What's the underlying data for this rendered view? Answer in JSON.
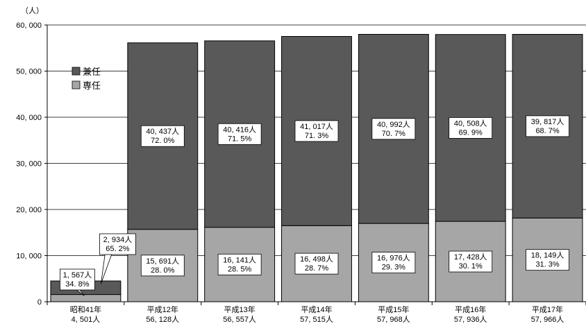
{
  "chart_data": {
    "type": "bar",
    "stacked": true,
    "y_unit": "（人）",
    "ylim": [
      0,
      60000
    ],
    "yticks": [
      0,
      10000,
      20000,
      30000,
      40000,
      50000,
      60000
    ],
    "ytick_labels": [
      "0",
      "10, 000",
      "20, 000",
      "30, 000",
      "40, 000",
      "50, 000",
      "60, 000"
    ],
    "categories": [
      {
        "name": "昭和41年",
        "total": "4, 501人"
      },
      {
        "name": "平成12年",
        "total": "56, 128人"
      },
      {
        "name": "平成13年",
        "total": "56, 557人"
      },
      {
        "name": "平成14年",
        "total": "57, 515人"
      },
      {
        "name": "平成15年",
        "total": "57, 968人"
      },
      {
        "name": "平成16年",
        "total": "57, 936人"
      },
      {
        "name": "平成17年",
        "total": "57, 966人"
      }
    ],
    "series": [
      {
        "name": "専任",
        "color": "#a6a6a6",
        "values": [
          1567,
          15691,
          16141,
          16498,
          16976,
          17428,
          18149
        ],
        "labels": [
          [
            "1, 567人",
            "34. 8%"
          ],
          [
            "15, 691人",
            "28. 0%"
          ],
          [
            "16, 141人",
            "28. 5%"
          ],
          [
            "16, 498人",
            "28. 7%"
          ],
          [
            "16, 976人",
            "29. 3%"
          ],
          [
            "17, 428人",
            "30. 1%"
          ],
          [
            "18, 149人",
            "31. 3%"
          ]
        ]
      },
      {
        "name": "兼任",
        "color": "#595959",
        "values": [
          2934,
          40437,
          40416,
          41017,
          40992,
          40508,
          39817
        ],
        "labels": [
          [
            "2, 934人",
            "65. 2%"
          ],
          [
            "40, 437人",
            "72. 0%"
          ],
          [
            "40, 416人",
            "71. 5%"
          ],
          [
            "41, 017人",
            "71. 3%"
          ],
          [
            "40, 992人",
            "70. 7%"
          ],
          [
            "40, 508人",
            "69. 9%"
          ],
          [
            "39, 817人",
            "68. 7%"
          ]
        ]
      }
    ],
    "legend": {
      "position": "upper-left",
      "order": [
        "兼任",
        "専任"
      ]
    }
  }
}
